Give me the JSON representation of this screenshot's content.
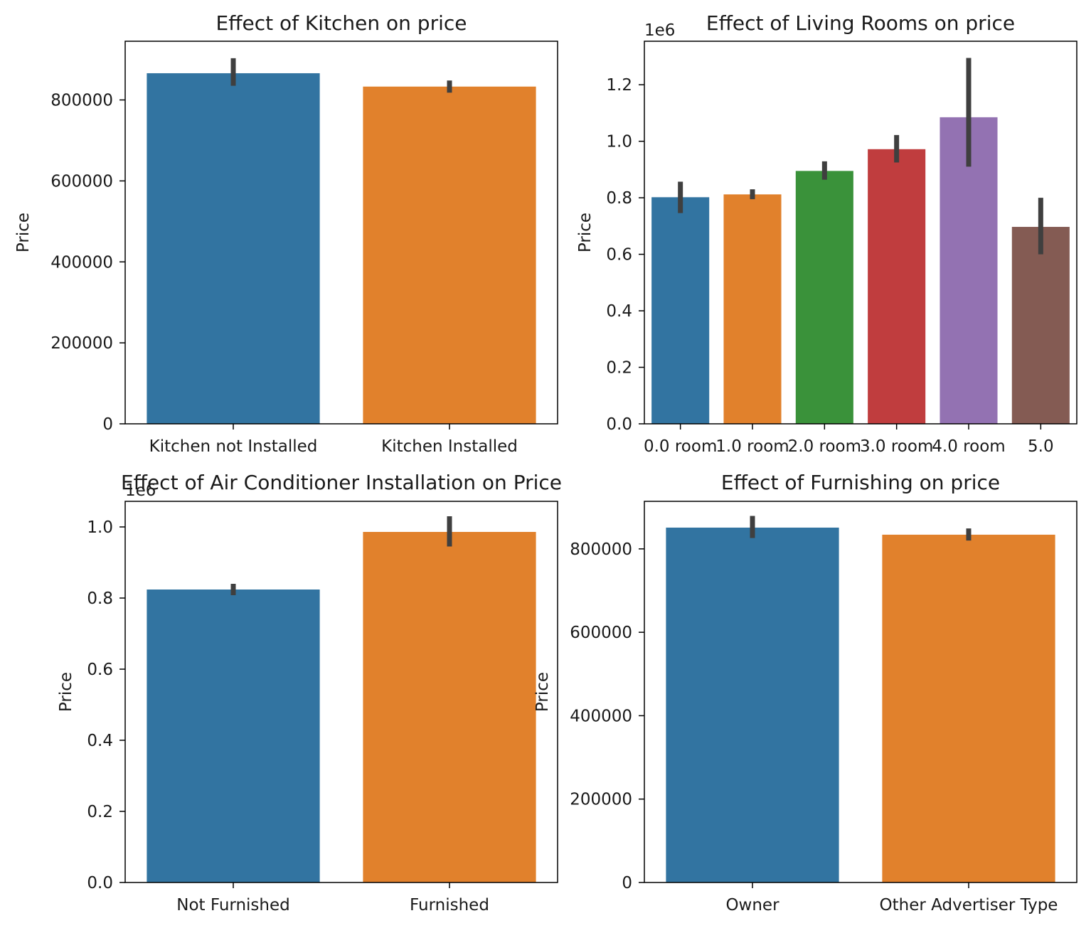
{
  "chart_data": [
    {
      "type": "bar",
      "title": "Effect of Kitchen on price",
      "xlabel": "",
      "ylabel": "Price",
      "categories": [
        "Kitchen not Installed",
        "Kitchen Installed"
      ],
      "values": [
        866000,
        833000
      ],
      "error_low": [
        835000,
        818000
      ],
      "error_high": [
        903000,
        848000
      ],
      "ylim": [
        0,
        945000
      ],
      "yticks": [
        0,
        200000,
        400000,
        600000,
        800000
      ],
      "ytick_labels": [
        "0",
        "200000",
        "400000",
        "600000",
        "800000"
      ],
      "offset_text": "",
      "colors": [
        "#3274a1",
        "#e1812c"
      ],
      "grid": false,
      "legend": "none"
    },
    {
      "type": "bar",
      "title": "Effect of Living Rooms on price",
      "xlabel": "",
      "ylabel": "Price",
      "categories": [
        "0.0 room",
        "1.0 room",
        "2.0 room",
        "3.0 room",
        "4.0 room",
        "5.0"
      ],
      "values": [
        802000,
        812000,
        895000,
        972000,
        1085000,
        697000
      ],
      "error_low": [
        746000,
        795000,
        864000,
        925000,
        910000,
        600000
      ],
      "error_high": [
        857000,
        830000,
        929000,
        1022000,
        1295000,
        800000
      ],
      "ylim": [
        0,
        1354000
      ],
      "yticks": [
        0,
        200000,
        400000,
        600000,
        800000,
        1000000,
        1200000
      ],
      "ytick_labels": [
        "0.0",
        "0.2",
        "0.4",
        "0.6",
        "0.8",
        "1.0",
        "1.2"
      ],
      "offset_text": "1e6",
      "colors": [
        "#3274a1",
        "#e1812c",
        "#3a923a",
        "#c03d3e",
        "#9372b2",
        "#845b53"
      ],
      "grid": false,
      "legend": "none"
    },
    {
      "type": "bar",
      "title": "Effect of Air Conditioner Installation on Price",
      "xlabel": "",
      "ylabel": "Price",
      "categories": [
        "Not Furnished",
        "Furnished"
      ],
      "values": [
        824000,
        986000
      ],
      "error_low": [
        808000,
        945000
      ],
      "error_high": [
        840000,
        1030000
      ],
      "ylim": [
        0,
        1072000
      ],
      "yticks": [
        0,
        200000,
        400000,
        600000,
        800000,
        1000000
      ],
      "ytick_labels": [
        "0.0",
        "0.2",
        "0.4",
        "0.6",
        "0.8",
        "1.0"
      ],
      "offset_text": "1e6",
      "colors": [
        "#3274a1",
        "#e1812c"
      ],
      "grid": false,
      "legend": "none"
    },
    {
      "type": "bar",
      "title": "Effect of Furnishing on price",
      "xlabel": "",
      "ylabel": "Price",
      "categories": [
        "Owner",
        "Other Advertiser Type"
      ],
      "values": [
        851000,
        834000
      ],
      "error_low": [
        826000,
        820000
      ],
      "error_high": [
        879000,
        849000
      ],
      "ylim": [
        0,
        914000
      ],
      "yticks": [
        0,
        200000,
        400000,
        600000,
        800000
      ],
      "ytick_labels": [
        "0",
        "200000",
        "400000",
        "600000",
        "800000"
      ],
      "offset_text": "",
      "colors": [
        "#3274a1",
        "#e1812c"
      ],
      "grid": false,
      "legend": "none"
    }
  ]
}
